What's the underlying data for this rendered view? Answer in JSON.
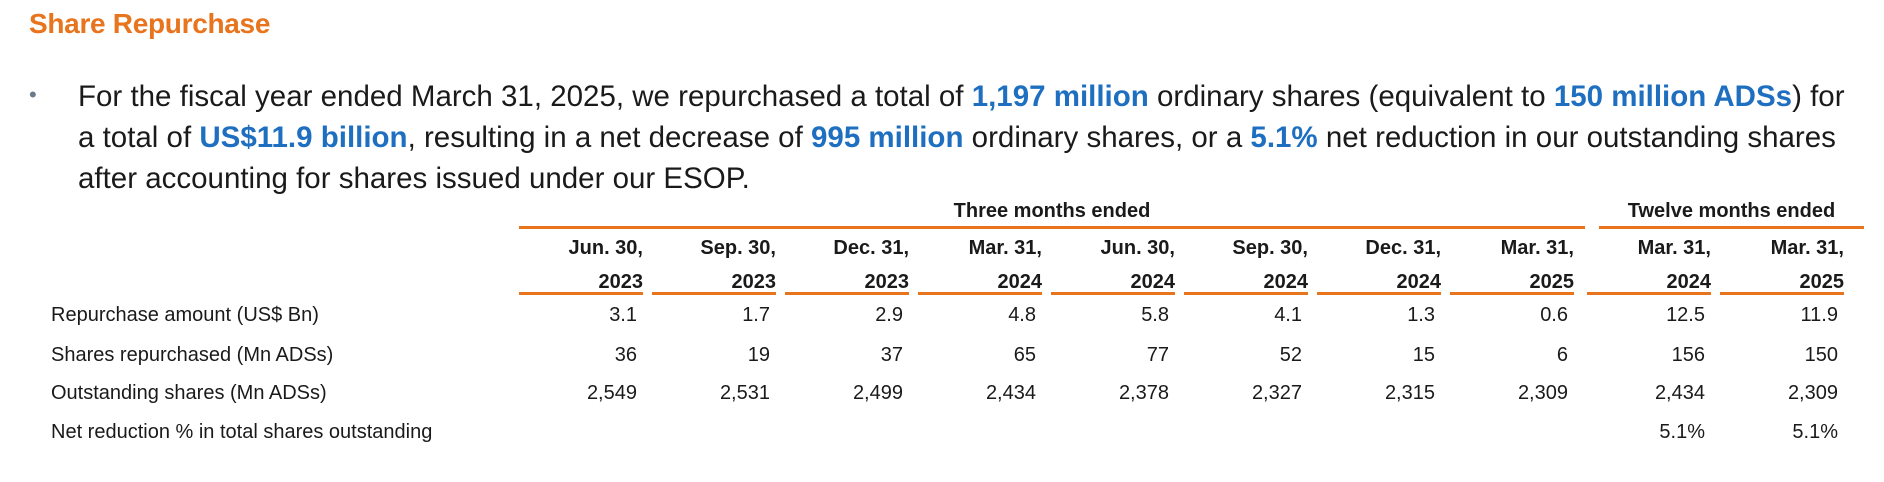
{
  "title": "Share Repurchase",
  "bullet": {
    "parts": [
      {
        "text": "For the fiscal year ended March 31, 2025, we repurchased a total of ",
        "hl": false
      },
      {
        "text": "1,197 million",
        "hl": true
      },
      {
        "text": " ordinary shares (equivalent to ",
        "hl": false
      },
      {
        "text": "150 million ADSs",
        "hl": true
      },
      {
        "text": ") for a total of ",
        "hl": false
      },
      {
        "text": "US$11.9 billion",
        "hl": true
      },
      {
        "text": ", resulting in a net decrease of ",
        "hl": false
      },
      {
        "text": "995 million",
        "hl": true
      },
      {
        "text": " ordinary shares, or a ",
        "hl": false
      },
      {
        "text": "5.1%",
        "hl": true
      },
      {
        "text": " net reduction in our outstanding shares after accounting for shares issued under our ESOP.",
        "hl": false
      }
    ]
  },
  "table": {
    "group_three": "Three months ended",
    "group_twelve": "Twelve months ended",
    "columns": [
      {
        "line1": "Jun. 30,",
        "line2": "2023"
      },
      {
        "line1": "Sep. 30,",
        "line2": "2023"
      },
      {
        "line1": "Dec. 31,",
        "line2": "2023"
      },
      {
        "line1": "Mar. 31,",
        "line2": "2024"
      },
      {
        "line1": "Jun. 30,",
        "line2": "2024"
      },
      {
        "line1": "Sep. 30,",
        "line2": "2024"
      },
      {
        "line1": "Dec. 31,",
        "line2": "2024"
      },
      {
        "line1": "Mar. 31,",
        "line2": "2025"
      },
      {
        "line1": "Mar. 31,",
        "line2": "2024"
      },
      {
        "line1": "Mar. 31,",
        "line2": "2025"
      }
    ],
    "rows": [
      {
        "label": "Repurchase amount (US$ Bn)",
        "values": [
          "3.1",
          "1.7",
          "2.9",
          "4.8",
          "5.8",
          "4.1",
          "1.3",
          "0.6",
          "12.5",
          "11.9"
        ]
      },
      {
        "label": "Shares repurchased (Mn ADSs)",
        "values": [
          "36",
          "19",
          "37",
          "65",
          "77",
          "52",
          "15",
          "6",
          "156",
          "150"
        ]
      },
      {
        "label": "Outstanding shares (Mn ADSs)",
        "values": [
          "2,549",
          "2,531",
          "2,499",
          "2,434",
          "2,378",
          "2,327",
          "2,315",
          "2,309",
          "2,434",
          "2,309"
        ]
      },
      {
        "label": "Net reduction % in total shares outstanding",
        "values": [
          "",
          "",
          "",
          "",
          "",
          "",
          "",
          "",
          "5.1%",
          "5.1%"
        ]
      }
    ]
  }
}
